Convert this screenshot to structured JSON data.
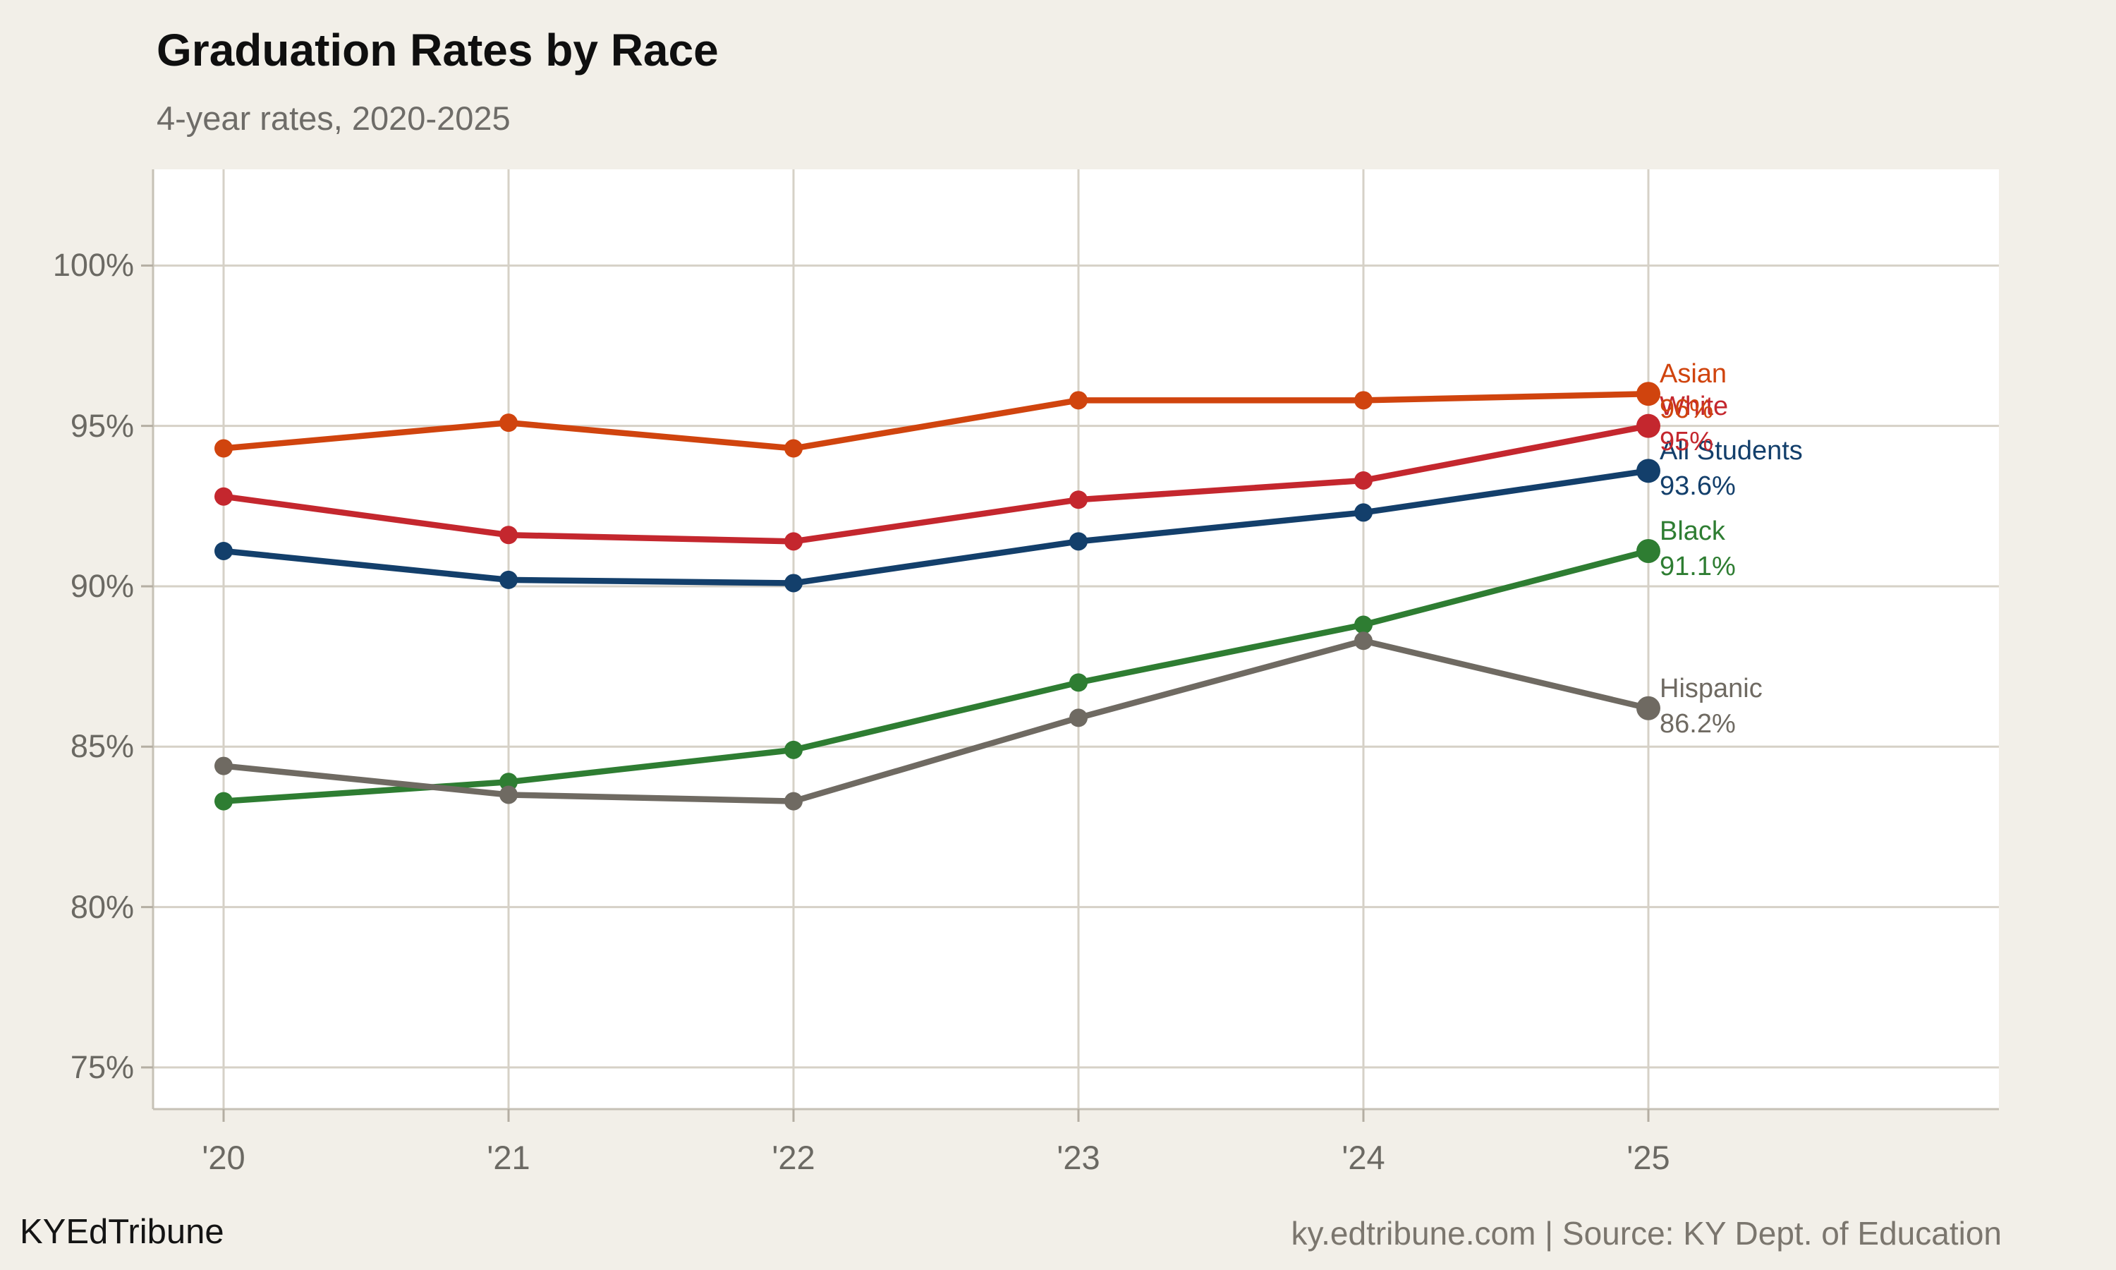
{
  "header": {
    "title": "Graduation Rates by Race",
    "subtitle": "4-year rates, 2020-2025"
  },
  "footer": {
    "brand": "KYEdTribune",
    "source": "ky.edtribune.com | Source: KY Dept. of Education"
  },
  "colors": {
    "background": "#f2efe8",
    "plot_bg": "#ffffff",
    "gridline": "#d6d1c7",
    "axis": "#c6c1b6",
    "tick": "#b4aea2",
    "title": "#0f0f0f",
    "subtitle": "#6e6c68",
    "axis_label": "#6b6963",
    "brand": "#141414",
    "source": "#7b766e"
  },
  "chart_data": {
    "type": "line",
    "title": "Graduation Rates by Race",
    "subtitle": "4-year rates, 2020-2025",
    "x_labels": [
      "'20",
      "'21",
      "'22",
      "'23",
      "'24",
      "'25"
    ],
    "y_tick_labels": [
      "100%",
      "95%",
      "90%",
      "85%",
      "80%",
      "75%"
    ],
    "y_tick_values": [
      100,
      95,
      90,
      85,
      80,
      75
    ],
    "ylim": [
      73.7,
      103.0
    ],
    "grid": true,
    "legend_position": "right-of-last-point",
    "series": [
      {
        "name": "All Students",
        "color": "#133f6b",
        "values": [
          91.1,
          90.2,
          90.1,
          91.4,
          92.3,
          93.6
        ],
        "end_label": "93.6%"
      },
      {
        "name": "White",
        "color": "#c4272e",
        "values": [
          92.8,
          91.6,
          91.4,
          92.7,
          93.3,
          95.0
        ],
        "end_label": "95%"
      },
      {
        "name": "Black",
        "color": "#2e7d32",
        "values": [
          83.3,
          83.9,
          84.9,
          87.0,
          88.8,
          91.1
        ],
        "end_label": "91.1%"
      },
      {
        "name": "Hispanic",
        "color": "#6f6a62",
        "values": [
          84.4,
          83.5,
          83.3,
          85.9,
          88.3,
          86.2
        ],
        "end_label": "86.2%"
      },
      {
        "name": "Asian",
        "color": "#d0440e",
        "values": [
          94.3,
          95.1,
          94.3,
          95.8,
          95.8,
          96.0
        ],
        "end_label": "96%"
      }
    ]
  }
}
